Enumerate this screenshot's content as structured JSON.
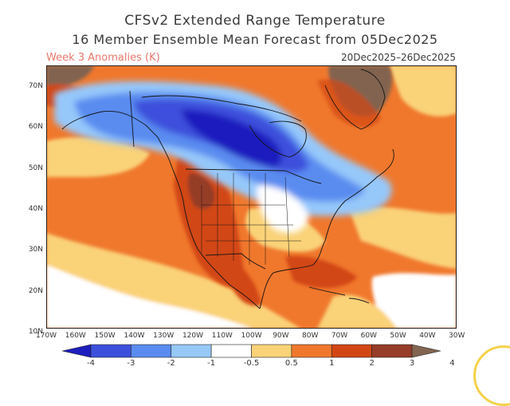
{
  "header": {
    "title_line1": "CFSv2 Extended Range Temperature",
    "title_line2": "16 Member Ensemble Mean Forecast from 05Dec2025",
    "subtitle_left": "Week 3 Anomalies (K)",
    "subtitle_right": "20Dec2025–26Dec2025"
  },
  "map": {
    "lat_labels": [
      "70N",
      "60N",
      "50N",
      "40N",
      "30N",
      "20N",
      "10N"
    ],
    "lon_labels": [
      "170W",
      "160W",
      "150W",
      "140W",
      "130W",
      "120W",
      "110W",
      "100W",
      "90W",
      "80W",
      "70W",
      "60W",
      "50W",
      "40W",
      "30W"
    ]
  },
  "colorbar": {
    "labels": [
      "-4",
      "-3",
      "-2",
      "-1",
      "-0.5",
      "0.5",
      "1",
      "2",
      "3",
      "4"
    ],
    "colors": [
      "#1e1ebe",
      "#3c50dc",
      "#5a8cf0",
      "#96c8fa",
      "#ffffff",
      "#fad278",
      "#f0782d",
      "#d24614",
      "#963c28",
      "#826450"
    ]
  }
}
